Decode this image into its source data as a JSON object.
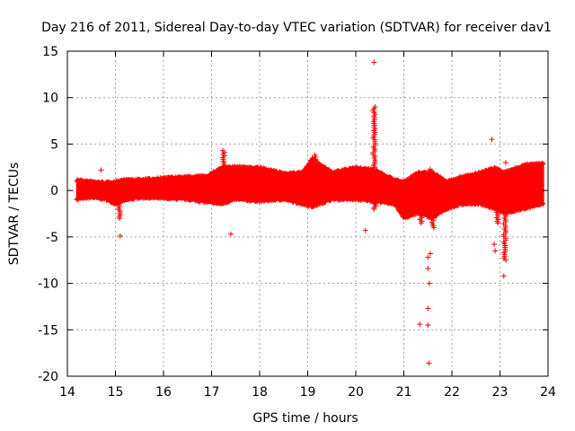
{
  "chart_data": {
    "type": "scatter",
    "title": "Day 216 of 2011, Sidereal Day-to-day VTEC variation (SDTVAR) for receiver dav1",
    "xlabel": "GPS time / hours",
    "ylabel": "SDTVAR / TECUs",
    "xlim": [
      14,
      24
    ],
    "ylim": [
      -20,
      15
    ],
    "xticks": [
      "14",
      "15",
      "16",
      "17",
      "18",
      "19",
      "20",
      "21",
      "22",
      "23",
      "24"
    ],
    "yticks": [
      "15",
      "10",
      "5",
      "0",
      "-5",
      "-10",
      "-15",
      "-20"
    ],
    "grid": true,
    "marker": "+",
    "color": "#ff0000",
    "band_envelope": [
      {
        "x": 14.2,
        "lo": -1.0,
        "hi": 1.2
      },
      {
        "x": 14.5,
        "lo": -0.8,
        "hi": 1.0
      },
      {
        "x": 14.8,
        "lo": -1.0,
        "hi": 0.9
      },
      {
        "x": 15.0,
        "lo": -1.5,
        "hi": 1.0
      },
      {
        "x": 15.15,
        "lo": -1.2,
        "hi": 1.2
      },
      {
        "x": 15.5,
        "lo": -0.8,
        "hi": 1.2
      },
      {
        "x": 16.0,
        "lo": -0.9,
        "hi": 1.4
      },
      {
        "x": 16.5,
        "lo": -1.0,
        "hi": 1.5
      },
      {
        "x": 16.9,
        "lo": -1.3,
        "hi": 1.6
      },
      {
        "x": 17.2,
        "lo": -1.5,
        "hi": 2.5
      },
      {
        "x": 17.5,
        "lo": -1.0,
        "hi": 2.6
      },
      {
        "x": 18.0,
        "lo": -1.2,
        "hi": 2.5
      },
      {
        "x": 18.5,
        "lo": -1.0,
        "hi": 1.9
      },
      {
        "x": 18.9,
        "lo": -1.5,
        "hi": 2.0
      },
      {
        "x": 19.1,
        "lo": -1.8,
        "hi": 3.5
      },
      {
        "x": 19.5,
        "lo": -1.0,
        "hi": 2.0
      },
      {
        "x": 20.0,
        "lo": -1.0,
        "hi": 2.5
      },
      {
        "x": 20.4,
        "lo": -1.2,
        "hi": 2.3
      },
      {
        "x": 20.8,
        "lo": -1.5,
        "hi": 1.2
      },
      {
        "x": 21.0,
        "lo": -3.0,
        "hi": 1.0
      },
      {
        "x": 21.3,
        "lo": -2.5,
        "hi": 2.0
      },
      {
        "x": 21.6,
        "lo": -3.0,
        "hi": 2.0
      },
      {
        "x": 21.9,
        "lo": -2.0,
        "hi": 1.0
      },
      {
        "x": 22.2,
        "lo": -1.5,
        "hi": 1.5
      },
      {
        "x": 22.6,
        "lo": -1.5,
        "hi": 2.0
      },
      {
        "x": 22.9,
        "lo": -2.0,
        "hi": 2.5
      },
      {
        "x": 23.1,
        "lo": -2.5,
        "hi": 2.0
      },
      {
        "x": 23.5,
        "lo": -2.0,
        "hi": 2.8
      },
      {
        "x": 23.9,
        "lo": -1.5,
        "hi": 3.0
      }
    ],
    "excursions": [
      {
        "x": 15.08,
        "from": -0.5,
        "to": -3.0
      },
      {
        "x": 17.25,
        "from": 2.0,
        "to": 4.3
      },
      {
        "x": 19.15,
        "from": 2.5,
        "to": 3.8
      },
      {
        "x": 20.38,
        "from": 2.3,
        "to": 9.0
      },
      {
        "x": 20.4,
        "from": -1.0,
        "to": -2.0
      },
      {
        "x": 21.35,
        "from": -1.0,
        "to": -3.5
      },
      {
        "x": 21.6,
        "from": -1.0,
        "to": -4.0
      },
      {
        "x": 23.1,
        "from": -2.0,
        "to": -7.5
      },
      {
        "x": 22.95,
        "from": -2.0,
        "to": -3.5
      }
    ],
    "outliers": [
      {
        "x": 20.38,
        "y": 13.8
      },
      {
        "x": 22.83,
        "y": 5.5
      },
      {
        "x": 23.12,
        "y": 3.0
      },
      {
        "x": 14.7,
        "y": 2.2
      },
      {
        "x": 15.1,
        "y": -4.9
      },
      {
        "x": 17.4,
        "y": -4.7
      },
      {
        "x": 20.2,
        "y": -4.3
      },
      {
        "x": 22.9,
        "y": -6.5
      },
      {
        "x": 22.88,
        "y": -5.8
      },
      {
        "x": 23.08,
        "y": -9.2
      },
      {
        "x": 21.55,
        "y": -6.8
      },
      {
        "x": 21.5,
        "y": -7.2
      },
      {
        "x": 21.5,
        "y": -8.4
      },
      {
        "x": 21.53,
        "y": -10.0
      },
      {
        "x": 21.5,
        "y": -12.7
      },
      {
        "x": 21.33,
        "y": -14.4
      },
      {
        "x": 21.5,
        "y": -14.5
      },
      {
        "x": 21.52,
        "y": -18.6
      },
      {
        "x": 21.48,
        "y": -2.5
      },
      {
        "x": 21.55,
        "y": 2.3
      }
    ]
  }
}
